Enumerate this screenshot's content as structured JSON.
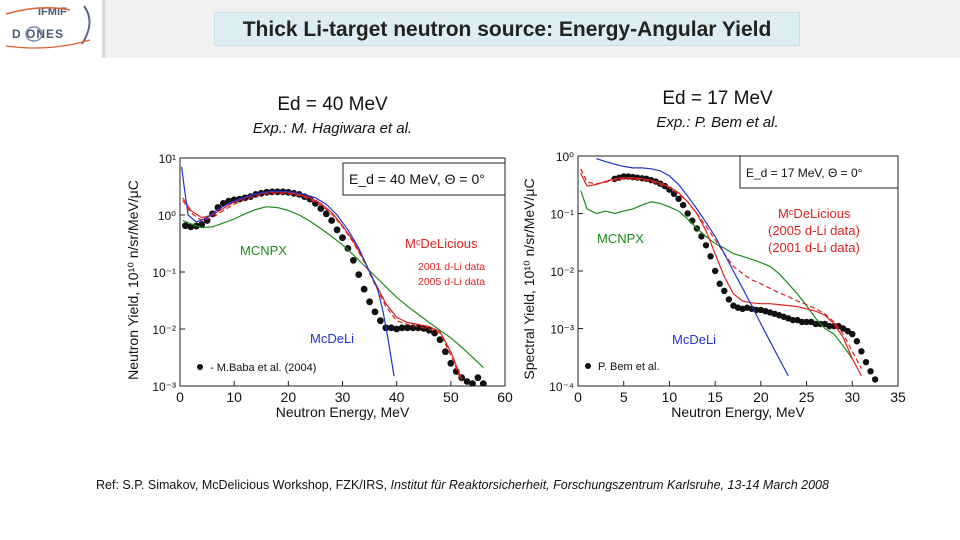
{
  "logo": {
    "line1": "IFMIF",
    "line2": "D ONES"
  },
  "title": "Thick Li-target neutron source: Energy-Angular Yield",
  "reference": {
    "prefix": "Ref: S.P. Simakov, McDelicious Workshop, FZK/IRS,",
    "italic": "Institut für Reaktorsicherheit, Forschungszentrum Karlsruhe, 13-14 March 2008"
  },
  "chart_data": [
    {
      "type": "line",
      "heading": "Ed = 40 MeV",
      "subheading": "Exp.: M. Hagiwara et al.",
      "xlabel": "Neutron Energy,  MeV",
      "ylabel": "Neutron Yield,  10¹⁰ n/sr/MeV/μC",
      "x_ticks": [
        "0",
        "10",
        "20",
        "30",
        "40",
        "50",
        "60"
      ],
      "y_ticks": [
        "10¹",
        "10⁰",
        "10⁻¹",
        "10⁻²",
        "10⁻³"
      ],
      "xlim": [
        0,
        60
      ],
      "ylim": [
        0.001,
        10
      ],
      "yscale": "log",
      "legend_box": "E_d = 40 MeV,  Θ = 0°",
      "labels": {
        "mcnpx": "MCNPX",
        "mcdelicious": "MᶜDeLicious",
        "data2001": "2001 d-Li data",
        "data2005": "2005 d-Li data",
        "mcdeli": "McDeLi",
        "exp": "- M.Baba et al. (2004)"
      },
      "series": [
        {
          "name": "- M.Baba et al. (2004)",
          "style": "markers",
          "x": [
            1,
            2,
            3,
            4,
            5,
            6,
            7,
            8,
            9,
            10,
            11,
            12,
            13,
            14,
            15,
            16,
            17,
            18,
            19,
            20,
            21,
            22,
            23,
            24,
            25,
            26,
            27,
            28,
            29,
            30,
            31,
            32,
            33,
            34,
            35,
            36,
            37,
            38,
            39,
            40,
            41,
            42,
            43,
            44,
            45,
            46,
            47,
            48,
            49,
            50,
            51,
            52,
            53,
            54,
            55,
            56
          ],
          "y": [
            0.65,
            0.62,
            0.64,
            0.68,
            0.8,
            1.05,
            1.35,
            1.6,
            1.75,
            1.85,
            1.9,
            2.0,
            2.1,
            2.3,
            2.4,
            2.5,
            2.55,
            2.55,
            2.55,
            2.5,
            2.4,
            2.3,
            2.1,
            1.9,
            1.6,
            1.3,
            1.05,
            0.8,
            0.55,
            0.4,
            0.26,
            0.16,
            0.09,
            0.05,
            0.03,
            0.02,
            0.014,
            0.0105,
            0.0105,
            0.01,
            0.0105,
            0.0105,
            0.0105,
            0.0105,
            0.0102,
            0.0095,
            0.0085,
            0.0065,
            0.004,
            0.0025,
            0.0018,
            0.0014,
            0.0012,
            0.0011,
            0.0014,
            0.0011
          ]
        },
        {
          "name": "MCNPX",
          "color": "#1d8a1d",
          "x": [
            0.5,
            2,
            4,
            6,
            8,
            10,
            12,
            14,
            16,
            18,
            20,
            22,
            24,
            26,
            28,
            30,
            32,
            34,
            36,
            38,
            40,
            42,
            44,
            46,
            48,
            50,
            52,
            54,
            56
          ],
          "y": [
            0.8,
            0.7,
            0.6,
            0.62,
            0.72,
            0.85,
            1.05,
            1.25,
            1.4,
            1.35,
            1.2,
            1.0,
            0.78,
            0.58,
            0.42,
            0.3,
            0.2,
            0.13,
            0.085,
            0.055,
            0.036,
            0.025,
            0.018,
            0.013,
            0.0095,
            0.007,
            0.0048,
            0.0032,
            0.0021
          ]
        },
        {
          "name": "2001 d-Li data",
          "color": "#dd2222",
          "x": [
            0.5,
            2,
            4,
            6,
            8,
            10,
            12,
            14,
            16,
            18,
            20,
            22,
            24,
            26,
            28,
            30,
            32,
            34,
            36,
            38,
            40,
            42,
            44,
            46,
            48,
            50,
            52
          ],
          "y": [
            2.0,
            1.2,
            0.9,
            1.0,
            1.3,
            1.7,
            2.0,
            2.3,
            2.5,
            2.55,
            2.5,
            2.3,
            2.0,
            1.6,
            1.1,
            0.65,
            0.35,
            0.16,
            0.065,
            0.028,
            0.016,
            0.013,
            0.012,
            0.011,
            0.009,
            0.004,
            0.0013
          ]
        },
        {
          "name": "2005 d-Li data",
          "color": "#dd2222",
          "dash": true,
          "x": [
            0.5,
            2,
            4,
            6,
            8,
            10,
            12,
            14,
            16,
            18,
            20,
            22,
            24,
            26,
            28,
            30,
            32,
            34,
            36,
            38,
            40,
            42,
            44,
            46,
            48,
            50,
            52
          ],
          "y": [
            1.8,
            1.1,
            0.8,
            0.9,
            1.2,
            1.55,
            1.85,
            2.15,
            2.35,
            2.4,
            2.35,
            2.2,
            1.9,
            1.5,
            1.05,
            0.62,
            0.33,
            0.15,
            0.06,
            0.025,
            0.014,
            0.012,
            0.011,
            0.01,
            0.0085,
            0.0035,
            0.0012
          ]
        },
        {
          "name": "McDeLi",
          "color": "#2233cc",
          "x": [
            0.3,
            0.8,
            1.5,
            3,
            5,
            7,
            9,
            11,
            13,
            15,
            17,
            19,
            21,
            23,
            25,
            27,
            29,
            31,
            33,
            35,
            36.5,
            37.5,
            38.5,
            39.5
          ],
          "y": [
            7.0,
            3.0,
            1.0,
            0.75,
            0.9,
            1.25,
            1.6,
            1.9,
            2.2,
            2.45,
            2.6,
            2.6,
            2.5,
            2.3,
            2.0,
            1.55,
            1.0,
            0.55,
            0.26,
            0.1,
            0.05,
            0.02,
            0.006,
            0.0015
          ]
        }
      ]
    },
    {
      "type": "line",
      "heading": "Ed = 17 MeV",
      "subheading": "Exp.: P. Bem et al.",
      "xlabel": "Neutron Energy,  MeV",
      "ylabel": "Spectral Yield,  10¹⁰ n/sr/MeV/μC",
      "x_ticks": [
        "0",
        "5",
        "10",
        "15",
        "20",
        "25",
        "30",
        "35"
      ],
      "y_ticks": [
        "10⁰",
        "10⁻¹",
        "10⁻²",
        "10⁻³",
        "10⁻⁴"
      ],
      "xlim": [
        0,
        35
      ],
      "ylim": [
        0.0001,
        1
      ],
      "yscale": "log",
      "legend_box": "E_d = 17 MeV,  Θ = 0°",
      "labels": {
        "mcnpx": "MCNPX",
        "mcdelicious": "MᶜDeLicious",
        "data2005": "(2005 d-Li data)",
        "data2001": "(2001 d-Li data)",
        "mcdeli": "McDeLi",
        "exp": "P. Bem et al."
      },
      "series": [
        {
          "name": "P. Bem et al.",
          "style": "markers",
          "x": [
            4,
            4.5,
            5,
            5.5,
            6,
            6.5,
            7,
            7.5,
            8,
            8.5,
            9,
            9.5,
            10,
            10.5,
            11,
            11.5,
            12,
            12.5,
            13,
            13.5,
            14,
            14.5,
            15,
            15.5,
            16,
            16.5,
            17,
            17.5,
            18,
            18.5,
            19,
            19.5,
            20,
            20.5,
            21,
            21.5,
            22,
            22.5,
            23,
            23.5,
            24,
            24.5,
            25,
            25.5,
            26,
            26.5,
            27,
            27.5,
            28,
            28.5,
            29,
            29.5,
            30,
            30.5,
            31,
            31.5,
            32,
            32.5
          ],
          "y": [
            0.4,
            0.42,
            0.44,
            0.44,
            0.43,
            0.42,
            0.41,
            0.4,
            0.38,
            0.36,
            0.33,
            0.3,
            0.26,
            0.22,
            0.18,
            0.14,
            0.1,
            0.075,
            0.055,
            0.04,
            0.028,
            0.018,
            0.01,
            0.006,
            0.0045,
            0.0032,
            0.0025,
            0.0023,
            0.0022,
            0.0023,
            0.0022,
            0.0021,
            0.0021,
            0.002,
            0.0019,
            0.0018,
            0.0017,
            0.0016,
            0.0015,
            0.0014,
            0.0014,
            0.0013,
            0.0013,
            0.0013,
            0.0012,
            0.0012,
            0.0012,
            0.0011,
            0.0011,
            0.0011,
            0.001,
            0.0009,
            0.0008,
            0.0006,
            0.0004,
            0.00026,
            0.00018,
            0.00013
          ]
        },
        {
          "name": "MCNPX",
          "color": "#1d8a1d",
          "x": [
            0.3,
            1,
            2,
            3,
            4,
            5,
            6,
            7,
            8,
            9,
            10,
            11,
            12,
            13,
            14,
            15,
            16,
            17,
            18,
            19,
            20,
            21,
            22,
            23,
            24,
            25,
            26,
            27,
            28,
            29,
            30
          ],
          "y": [
            0.25,
            0.12,
            0.1,
            0.11,
            0.1,
            0.11,
            0.12,
            0.14,
            0.16,
            0.15,
            0.13,
            0.11,
            0.08,
            0.055,
            0.04,
            0.03,
            0.025,
            0.02,
            0.018,
            0.016,
            0.014,
            0.012,
            0.009,
            0.006,
            0.004,
            0.0025,
            0.0015,
            0.001,
            0.0008,
            0.0005,
            0.0003
          ]
        },
        {
          "name": "(2005 d-Li data)",
          "color": "#dd2222",
          "dash": true,
          "x": [
            0.3,
            1,
            2,
            3,
            4,
            5,
            6,
            7,
            8,
            9,
            10,
            11,
            12,
            13,
            14,
            15,
            16,
            17,
            18,
            19,
            20,
            21,
            22,
            23,
            24,
            25,
            26,
            27,
            28,
            29,
            30,
            31
          ],
          "y": [
            0.6,
            0.35,
            0.33,
            0.35,
            0.38,
            0.4,
            0.4,
            0.38,
            0.36,
            0.32,
            0.28,
            0.22,
            0.16,
            0.1,
            0.06,
            0.035,
            0.02,
            0.012,
            0.009,
            0.007,
            0.006,
            0.005,
            0.0042,
            0.0036,
            0.003,
            0.0026,
            0.0022,
            0.0018,
            0.0013,
            0.0008,
            0.0004,
            0.0002
          ]
        },
        {
          "name": "(2001 d-Li data)",
          "color": "#dd2222",
          "x": [
            0.3,
            1,
            2,
            3,
            4,
            5,
            6,
            7,
            8,
            9,
            10,
            11,
            12,
            13,
            14,
            15,
            16,
            17,
            18,
            19,
            20,
            21,
            22,
            23,
            24,
            25,
            26,
            27,
            28,
            29,
            30,
            31
          ],
          "y": [
            0.5,
            0.3,
            0.32,
            0.36,
            0.4,
            0.42,
            0.42,
            0.4,
            0.38,
            0.34,
            0.29,
            0.23,
            0.16,
            0.1,
            0.05,
            0.02,
            0.008,
            0.004,
            0.003,
            0.0028,
            0.0027,
            0.0027,
            0.0026,
            0.0025,
            0.0024,
            0.0022,
            0.002,
            0.0017,
            0.0012,
            0.0007,
            0.0003,
            0.00015
          ]
        },
        {
          "name": "McDeLi",
          "color": "#2233cc",
          "x": [
            2,
            3,
            4,
            5,
            6,
            7,
            8,
            9,
            10,
            11,
            12,
            13,
            14,
            15,
            16,
            17,
            18,
            19,
            20,
            21,
            22,
            23
          ],
          "y": [
            0.9,
            0.8,
            0.72,
            0.66,
            0.62,
            0.62,
            0.6,
            0.55,
            0.45,
            0.32,
            0.2,
            0.12,
            0.07,
            0.04,
            0.02,
            0.01,
            0.005,
            0.0025,
            0.0012,
            0.0006,
            0.0003,
            0.00015
          ]
        }
      ]
    }
  ]
}
